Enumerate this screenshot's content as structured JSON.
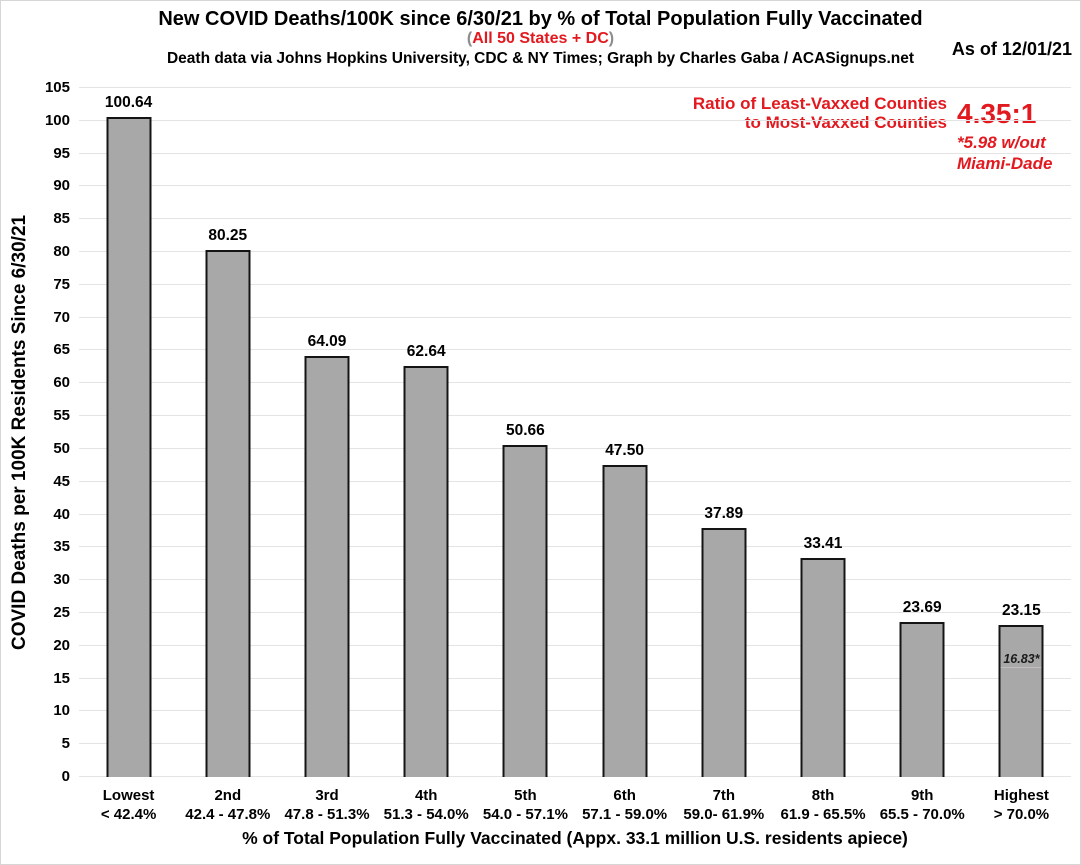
{
  "theme": {
    "accent_red": "#e2191f",
    "paren_gray": "#8c8c8c",
    "bar_fill": "#a8a8a8",
    "bar_border": "#141414",
    "gridline": "#e4e4e4"
  },
  "header": {
    "title": "New COVID Deaths/100K since 6/30/21 by % of Total Population Fully Vaccinated",
    "subtitle_open": "(",
    "subtitle_main": "All 50 States + DC",
    "subtitle_close": ")",
    "credit": "Death data via Johns Hopkins University, CDC & NY Times; Graph by Charles Gaba / ACASignups.net",
    "as_of": "As of 12/01/21"
  },
  "annotation": {
    "label_line1": "Ratio of Least-Vaxxed Counties",
    "label_line2": "to Most-Vaxxed Counties",
    "ratio": "4.35:1",
    "footnote_line1": "*5.98 w/out",
    "footnote_line2": "Miami-Dade"
  },
  "chart_data": {
    "type": "bar",
    "title": "New COVID Deaths/100K since 6/30/21 by % of Total Population Fully Vaccinated",
    "subtitle": "(All 50 States + DC)",
    "categories": [
      {
        "rank": "Lowest",
        "range": "< 42.4%"
      },
      {
        "rank": "2nd",
        "range": "42.4 - 47.8%"
      },
      {
        "rank": "3rd",
        "range": "47.8 - 51.3%"
      },
      {
        "rank": "4th",
        "range": "51.3 - 54.0%"
      },
      {
        "rank": "5th",
        "range": "54.0 - 57.1%"
      },
      {
        "rank": "6th",
        "range": "57.1 - 59.0%"
      },
      {
        "rank": "7th",
        "range": "59.0- 61.9%"
      },
      {
        "rank": "8th",
        "range": "61.9 - 65.5%"
      },
      {
        "rank": "9th",
        "range": "65.5 - 70.0%"
      },
      {
        "rank": "Highest",
        "range": "> 70.0%"
      }
    ],
    "values": [
      100.64,
      80.25,
      64.09,
      62.64,
      50.66,
      47.5,
      37.89,
      33.41,
      23.69,
      23.15
    ],
    "bar_labels": [
      "100.64",
      "80.25",
      "64.09",
      "62.64",
      "50.66",
      "47.50",
      "37.89",
      "33.41",
      "23.69",
      "23.15"
    ],
    "inner_annotation": {
      "bar_index": 9,
      "label": "16.83*",
      "value": 16.83
    },
    "xlabel": "% of Total Population Fully Vaccinated (Appx. 33.1 million U.S. residents apiece)",
    "ylabel": "COVID Deaths per 100K Residents Since 6/30/21",
    "ylim": [
      0,
      105
    ],
    "yticks": [
      0,
      5,
      10,
      15,
      20,
      25,
      30,
      35,
      40,
      45,
      50,
      55,
      60,
      65,
      70,
      75,
      80,
      85,
      90,
      95,
      100,
      105
    ],
    "grid": true,
    "legend": "none"
  }
}
